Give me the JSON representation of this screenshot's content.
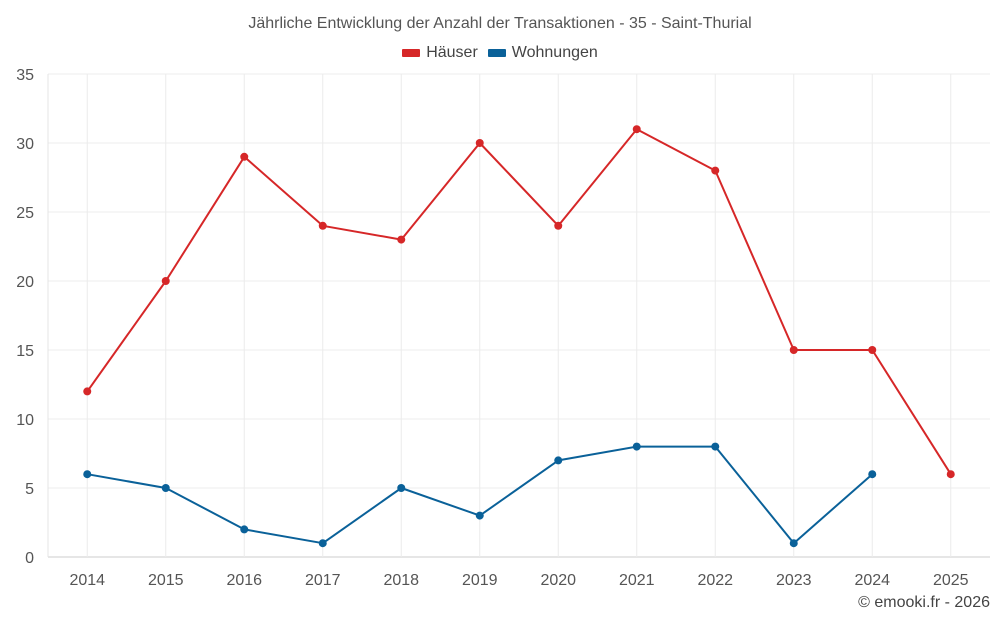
{
  "chart_data": {
    "type": "line",
    "title": "Jährliche Entwicklung der Anzahl der Transaktionen - 35 - Saint-Thurial",
    "x": [
      "2014",
      "2015",
      "2016",
      "2017",
      "2018",
      "2019",
      "2020",
      "2021",
      "2022",
      "2023",
      "2024",
      "2025"
    ],
    "ylim": [
      0,
      35
    ],
    "yticks": [
      0,
      5,
      10,
      15,
      20,
      25,
      30,
      35
    ],
    "grid": true,
    "legend_position": "top-center",
    "series": [
      {
        "name": "Häuser",
        "color": "#d62728",
        "values": [
          12,
          20,
          29,
          24,
          23,
          30,
          24,
          31,
          28,
          15,
          15,
          6
        ]
      },
      {
        "name": "Wohnungen",
        "color": "#0a6199",
        "values": [
          6,
          5,
          2,
          1,
          5,
          3,
          7,
          8,
          8,
          1,
          6,
          null
        ]
      }
    ],
    "xlabel": "",
    "ylabel": ""
  },
  "credit": "© emooki.fr - 2026"
}
